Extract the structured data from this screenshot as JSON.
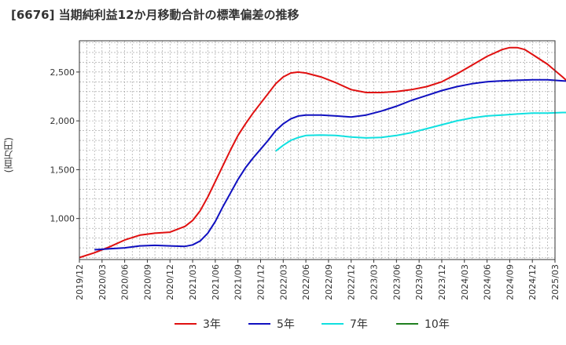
{
  "chart_data": {
    "type": "line",
    "title": "[6676]  当期純利益12か月移動合計の標準偏差の推移",
    "ylabel": "(百万円)",
    "xlabel": "",
    "x": [
      "2019/12",
      "2020/03",
      "2020/06",
      "2020/09",
      "2020/12",
      "2021/03",
      "2021/06",
      "2021/09",
      "2021/12",
      "2022/03",
      "2022/06",
      "2022/09",
      "2022/12",
      "2023/03",
      "2023/06",
      "2023/09",
      "2023/12",
      "2024/03",
      "2024/06",
      "2024/09",
      "2024/12",
      "2025/03"
    ],
    "xlim": [
      "2019/12",
      "2025/03"
    ],
    "ylim": [
      580,
      2820
    ],
    "yticks": [
      1000,
      1500,
      2000,
      2500
    ],
    "ytick_labels": [
      "1,000",
      "1,500",
      "2,000",
      "2,500"
    ],
    "grid": true,
    "legend_position": "bottom",
    "series": [
      {
        "name": "3年",
        "color": "#e01010",
        "points": [
          [
            "2019/12",
            600
          ],
          [
            "2020/02",
            650
          ],
          [
            "2020/04",
            710
          ],
          [
            "2020/06",
            780
          ],
          [
            "2020/08",
            830
          ],
          [
            "2020/10",
            850
          ],
          [
            "2020/12",
            860
          ],
          [
            "2021/02",
            920
          ],
          [
            "2021/03",
            980
          ],
          [
            "2021/04",
            1080
          ],
          [
            "2021/05",
            1220
          ],
          [
            "2021/06",
            1380
          ],
          [
            "2021/07",
            1540
          ],
          [
            "2021/08",
            1700
          ],
          [
            "2021/09",
            1850
          ],
          [
            "2021/10",
            1970
          ],
          [
            "2021/11",
            2080
          ],
          [
            "2021/12",
            2180
          ],
          [
            "2022/01",
            2280
          ],
          [
            "2022/02",
            2380
          ],
          [
            "2022/03",
            2450
          ],
          [
            "2022/04",
            2490
          ],
          [
            "2022/05",
            2500
          ],
          [
            "2022/06",
            2490
          ],
          [
            "2022/08",
            2450
          ],
          [
            "2022/10",
            2390
          ],
          [
            "2022/12",
            2320
          ],
          [
            "2023/02",
            2290
          ],
          [
            "2023/04",
            2290
          ],
          [
            "2023/06",
            2300
          ],
          [
            "2023/08",
            2320
          ],
          [
            "2023/10",
            2350
          ],
          [
            "2023/12",
            2400
          ],
          [
            "2024/02",
            2480
          ],
          [
            "2024/04",
            2570
          ],
          [
            "2024/06",
            2660
          ],
          [
            "2024/08",
            2730
          ],
          [
            "2024/09",
            2750
          ],
          [
            "2024/10",
            2750
          ],
          [
            "2024/11",
            2730
          ],
          [
            "2024/12",
            2680
          ],
          [
            "2025/02",
            2580
          ],
          [
            "2025/04",
            2450
          ],
          [
            "2025/06",
            2310
          ]
        ]
      },
      {
        "name": "5年",
        "color": "#1010c0",
        "points": [
          [
            "2020/02",
            680
          ],
          [
            "2020/04",
            690
          ],
          [
            "2020/06",
            700
          ],
          [
            "2020/08",
            720
          ],
          [
            "2020/10",
            725
          ],
          [
            "2020/12",
            720
          ],
          [
            "2021/02",
            715
          ],
          [
            "2021/03",
            730
          ],
          [
            "2021/04",
            770
          ],
          [
            "2021/05",
            850
          ],
          [
            "2021/06",
            970
          ],
          [
            "2021/07",
            1120
          ],
          [
            "2021/08",
            1260
          ],
          [
            "2021/09",
            1400
          ],
          [
            "2021/10",
            1520
          ],
          [
            "2021/11",
            1620
          ],
          [
            "2021/12",
            1710
          ],
          [
            "2022/01",
            1800
          ],
          [
            "2022/02",
            1900
          ],
          [
            "2022/03",
            1970
          ],
          [
            "2022/04",
            2020
          ],
          [
            "2022/05",
            2050
          ],
          [
            "2022/06",
            2060
          ],
          [
            "2022/08",
            2060
          ],
          [
            "2022/10",
            2050
          ],
          [
            "2022/12",
            2040
          ],
          [
            "2023/02",
            2060
          ],
          [
            "2023/04",
            2100
          ],
          [
            "2023/06",
            2150
          ],
          [
            "2023/08",
            2210
          ],
          [
            "2023/10",
            2260
          ],
          [
            "2023/12",
            2310
          ],
          [
            "2024/02",
            2350
          ],
          [
            "2024/04",
            2380
          ],
          [
            "2024/06",
            2400
          ],
          [
            "2024/08",
            2410
          ],
          [
            "2024/10",
            2415
          ],
          [
            "2024/12",
            2420
          ],
          [
            "2025/02",
            2420
          ],
          [
            "2025/04",
            2410
          ],
          [
            "2025/06",
            2400
          ]
        ]
      },
      {
        "name": "7年",
        "color": "#10e0e0",
        "points": [
          [
            "2022/02",
            1690
          ],
          [
            "2022/03",
            1750
          ],
          [
            "2022/04",
            1800
          ],
          [
            "2022/05",
            1830
          ],
          [
            "2022/06",
            1850
          ],
          [
            "2022/08",
            1855
          ],
          [
            "2022/10",
            1850
          ],
          [
            "2022/12",
            1835
          ],
          [
            "2023/02",
            1825
          ],
          [
            "2023/04",
            1830
          ],
          [
            "2023/06",
            1850
          ],
          [
            "2023/08",
            1880
          ],
          [
            "2023/10",
            1920
          ],
          [
            "2023/12",
            1960
          ],
          [
            "2024/02",
            2000
          ],
          [
            "2024/04",
            2030
          ],
          [
            "2024/06",
            2050
          ],
          [
            "2024/08",
            2060
          ],
          [
            "2024/10",
            2070
          ],
          [
            "2024/12",
            2080
          ],
          [
            "2025/02",
            2080
          ],
          [
            "2025/04",
            2085
          ],
          [
            "2025/06",
            2085
          ]
        ]
      },
      {
        "name": "10年",
        "color": "#208020",
        "points": []
      }
    ]
  }
}
